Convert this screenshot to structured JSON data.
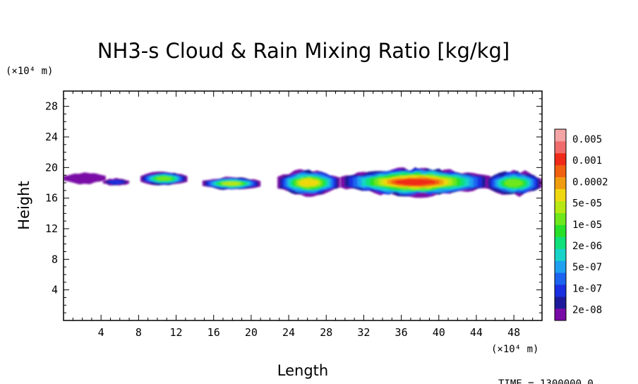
{
  "chart_data": {
    "type": "heatmap",
    "title": "NH3-s Cloud & Rain Mixing Ratio [kg/kg]",
    "xlabel": "Length",
    "ylabel": "Height",
    "x_unit": "(×10⁴ m)",
    "y_unit": "(×10⁴ m)",
    "time_label": "TIME = 1300000.0",
    "xlim": [
      0,
      51
    ],
    "ylim": [
      0,
      30
    ],
    "x_ticks": [
      4,
      8,
      12,
      16,
      20,
      24,
      28,
      32,
      36,
      40,
      44,
      48
    ],
    "y_ticks": [
      4,
      8,
      12,
      16,
      20,
      24,
      28
    ],
    "colorbar": {
      "levels": [
        "0.005",
        "0.001",
        "0.0002",
        "5e-05",
        "1e-05",
        "2e-06",
        "5e-07",
        "1e-07",
        "2e-08"
      ],
      "colors": [
        "#7a0aa6",
        "#1c1a9a",
        "#1a2fe0",
        "#1c63f0",
        "#1ea0f0",
        "#18d4c8",
        "#10e07a",
        "#28e028",
        "#6ee81a",
        "#b8e814",
        "#f0d810",
        "#f09c10",
        "#f06010",
        "#f02a18",
        "#f06c6c",
        "#f4a4a4"
      ]
    },
    "cloud_regions": [
      {
        "x": [
          0,
          4.5
        ],
        "y": [
          17.8,
          19.4
        ],
        "peak_level": "2e-08"
      },
      {
        "x": [
          4.2,
          7.0
        ],
        "y": [
          17.6,
          18.6
        ],
        "peak_level": "1e-07"
      },
      {
        "x": [
          8.2,
          13.2
        ],
        "y": [
          17.6,
          19.5
        ],
        "peak_level": "5e-05"
      },
      {
        "x": [
          14.8,
          21.0
        ],
        "y": [
          17.0,
          18.8
        ],
        "peak_level": "1e-04"
      },
      {
        "x": [
          22.8,
          29.5
        ],
        "y": [
          16.2,
          19.8
        ],
        "peak_level": "0.0002"
      },
      {
        "x": [
          29.5,
          45.5
        ],
        "y": [
          16.2,
          20.0
        ],
        "peak_level": "0.001"
      },
      {
        "x": [
          45.0,
          51.0
        ],
        "y": [
          16.2,
          19.7
        ],
        "peak_level": "5e-05"
      }
    ]
  }
}
